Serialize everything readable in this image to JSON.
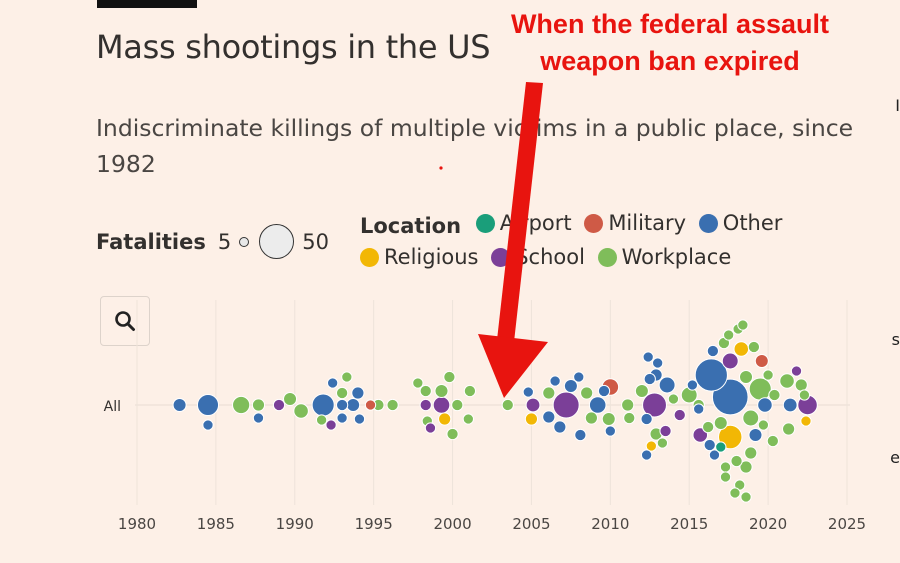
{
  "header": {
    "title": "Mass shootings in the US",
    "subtitle": "Indiscriminate killings of multiple victims in a public place, since 1982"
  },
  "annotation": {
    "text": "When the federal assault weapon ban expired",
    "color": "#e8140f"
  },
  "fatalities_legend": {
    "label": "Fatalities",
    "min": "5",
    "max": "50"
  },
  "location_legend": {
    "label": "Location",
    "items": [
      {
        "name": "Airport",
        "color": "#1a9e7a"
      },
      {
        "name": "Military",
        "color": "#cf5a46"
      },
      {
        "name": "Other",
        "color": "#3a6fb0"
      },
      {
        "name": "Religious",
        "color": "#f2b705"
      },
      {
        "name": "School",
        "color": "#7b3f98"
      },
      {
        "name": "Workplace",
        "color": "#7fbd5a"
      }
    ]
  },
  "search_icon": "search-icon",
  "chart_data": {
    "type": "scatter",
    "row_label": "All",
    "x_axis": {
      "ticks": [
        "1980",
        "1985",
        "1990",
        "1995",
        "2000",
        "2005",
        "2010",
        "2015",
        "2020",
        "2025"
      ],
      "range": [
        1980,
        2025
      ]
    },
    "y_axis": {
      "categories": [
        "All"
      ]
    },
    "size_variable": "Fatalities",
    "color_variable": "Location",
    "points": [
      {
        "year": 1982.7,
        "offset": 0,
        "fatalities": 8,
        "location": "Other"
      },
      {
        "year": 1984.5,
        "offset": 0,
        "fatalities": 21,
        "location": "Other"
      },
      {
        "year": 1984.5,
        "offset": 20,
        "fatalities": 5,
        "location": "Other"
      },
      {
        "year": 1986.6,
        "offset": 0,
        "fatalities": 14,
        "location": "Workplace"
      },
      {
        "year": 1987.7,
        "offset": 0,
        "fatalities": 7,
        "location": "Workplace"
      },
      {
        "year": 1987.7,
        "offset": 13,
        "fatalities": 5,
        "location": "Other"
      },
      {
        "year": 1989.0,
        "offset": 0,
        "fatalities": 6,
        "location": "School"
      },
      {
        "year": 1989.7,
        "offset": -6,
        "fatalities": 8,
        "location": "Workplace"
      },
      {
        "year": 1990.4,
        "offset": 6,
        "fatalities": 10,
        "location": "Workplace"
      },
      {
        "year": 1991.8,
        "offset": 0,
        "fatalities": 23,
        "location": "Other"
      },
      {
        "year": 1991.7,
        "offset": 15,
        "fatalities": 5,
        "location": "Workplace"
      },
      {
        "year": 1993.0,
        "offset": 0,
        "fatalities": 6,
        "location": "Other"
      },
      {
        "year": 1993.0,
        "offset": 13,
        "fatalities": 5,
        "location": "Other"
      },
      {
        "year": 1993.0,
        "offset": -12,
        "fatalities": 6,
        "location": "Workplace"
      },
      {
        "year": 1992.3,
        "offset": 20,
        "fatalities": 5,
        "location": "School"
      },
      {
        "year": 1992.4,
        "offset": -22,
        "fatalities": 5,
        "location": "Other"
      },
      {
        "year": 1993.3,
        "offset": -28,
        "fatalities": 5,
        "location": "Workplace"
      },
      {
        "year": 1993.7,
        "offset": 0,
        "fatalities": 8,
        "location": "Other"
      },
      {
        "year": 1994.0,
        "offset": -12,
        "fatalities": 7,
        "location": "Other"
      },
      {
        "year": 1994.1,
        "offset": 14,
        "fatalities": 5,
        "location": "Other"
      },
      {
        "year": 1994.8,
        "offset": 0,
        "fatalities": 5,
        "location": "Military"
      },
      {
        "year": 1995.3,
        "offset": 0,
        "fatalities": 6,
        "location": "Workplace"
      },
      {
        "year": 1996.2,
        "offset": 0,
        "fatalities": 6,
        "location": "Workplace"
      },
      {
        "year": 1997.8,
        "offset": -22,
        "fatalities": 5,
        "location": "Workplace"
      },
      {
        "year": 1998.3,
        "offset": 0,
        "fatalities": 6,
        "location": "School"
      },
      {
        "year": 1998.3,
        "offset": -14,
        "fatalities": 6,
        "location": "Workplace"
      },
      {
        "year": 1998.4,
        "offset": 16,
        "fatalities": 5,
        "location": "Workplace"
      },
      {
        "year": 1998.6,
        "offset": 23,
        "fatalities": 5,
        "location": "School"
      },
      {
        "year": 1999.3,
        "offset": -14,
        "fatalities": 8,
        "location": "Workplace"
      },
      {
        "year": 1999.3,
        "offset": 0,
        "fatalities": 13,
        "location": "School"
      },
      {
        "year": 1999.5,
        "offset": 14,
        "fatalities": 7,
        "location": "Religious"
      },
      {
        "year": 1999.8,
        "offset": -28,
        "fatalities": 6,
        "location": "Workplace"
      },
      {
        "year": 2000.0,
        "offset": 29,
        "fatalities": 6,
        "location": "Workplace"
      },
      {
        "year": 2000.3,
        "offset": 0,
        "fatalities": 6,
        "location": "Workplace"
      },
      {
        "year": 2001.0,
        "offset": 14,
        "fatalities": 5,
        "location": "Workplace"
      },
      {
        "year": 2001.1,
        "offset": -14,
        "fatalities": 6,
        "location": "Workplace"
      },
      {
        "year": 2003.5,
        "offset": 0,
        "fatalities": 6,
        "location": "Workplace"
      },
      {
        "year": 2004.8,
        "offset": -13,
        "fatalities": 5,
        "location": "Other"
      },
      {
        "year": 2005.1,
        "offset": 0,
        "fatalities": 9,
        "location": "School"
      },
      {
        "year": 2005.0,
        "offset": 14,
        "fatalities": 7,
        "location": "Religious"
      },
      {
        "year": 2006.1,
        "offset": 12,
        "fatalities": 7,
        "location": "Other"
      },
      {
        "year": 2006.1,
        "offset": -12,
        "fatalities": 7,
        "location": "Workplace"
      },
      {
        "year": 2006.5,
        "offset": -24,
        "fatalities": 5,
        "location": "Other"
      },
      {
        "year": 2006.8,
        "offset": 22,
        "fatalities": 7,
        "location": "Other"
      },
      {
        "year": 2007.2,
        "offset": 0,
        "fatalities": 32,
        "location": "School"
      },
      {
        "year": 2007.5,
        "offset": -19,
        "fatalities": 8,
        "location": "Other"
      },
      {
        "year": 2008.0,
        "offset": -28,
        "fatalities": 5,
        "location": "Other"
      },
      {
        "year": 2008.1,
        "offset": 30,
        "fatalities": 6,
        "location": "Other"
      },
      {
        "year": 2008.5,
        "offset": -12,
        "fatalities": 7,
        "location": "Workplace"
      },
      {
        "year": 2008.8,
        "offset": 13,
        "fatalities": 7,
        "location": "Workplace"
      },
      {
        "year": 2009.2,
        "offset": 0,
        "fatalities": 13,
        "location": "Other"
      },
      {
        "year": 2009.6,
        "offset": -14,
        "fatalities": 6,
        "location": "Other"
      },
      {
        "year": 2010.0,
        "offset": -18,
        "fatalities": 13,
        "location": "Military"
      },
      {
        "year": 2009.9,
        "offset": 14,
        "fatalities": 8,
        "location": "Workplace"
      },
      {
        "year": 2010.0,
        "offset": 26,
        "fatalities": 5,
        "location": "Other"
      },
      {
        "year": 2011.1,
        "offset": 0,
        "fatalities": 7,
        "location": "Workplace"
      },
      {
        "year": 2011.2,
        "offset": 13,
        "fatalities": 6,
        "location": "Workplace"
      },
      {
        "year": 2012.0,
        "offset": -14,
        "fatalities": 8,
        "location": "Workplace"
      },
      {
        "year": 2012.3,
        "offset": 14,
        "fatalities": 6,
        "location": "Other"
      },
      {
        "year": 2012.5,
        "offset": -26,
        "fatalities": 6,
        "location": "Other"
      },
      {
        "year": 2012.8,
        "offset": 0,
        "fatalities": 27,
        "location": "School"
      },
      {
        "year": 2012.9,
        "offset": -30,
        "fatalities": 7,
        "location": "Other"
      },
      {
        "year": 2012.9,
        "offset": 29,
        "fatalities": 7,
        "location": "Workplace"
      },
      {
        "year": 2012.6,
        "offset": 41,
        "fatalities": 5,
        "location": "Religious"
      },
      {
        "year": 2012.4,
        "offset": -48,
        "fatalities": 5,
        "location": "Other"
      },
      {
        "year": 2012.3,
        "offset": 50,
        "fatalities": 5,
        "location": "Other"
      },
      {
        "year": 2013.6,
        "offset": -20,
        "fatalities": 12,
        "location": "Other"
      },
      {
        "year": 2013.5,
        "offset": 26,
        "fatalities": 6,
        "location": "School"
      },
      {
        "year": 2013.3,
        "offset": 38,
        "fatalities": 5,
        "location": "Workplace"
      },
      {
        "year": 2013.0,
        "offset": -42,
        "fatalities": 5,
        "location": "Other"
      },
      {
        "year": 2014.0,
        "offset": -6,
        "fatalities": 5,
        "location": "Workplace"
      },
      {
        "year": 2014.4,
        "offset": 10,
        "fatalities": 6,
        "location": "School"
      },
      {
        "year": 2015.0,
        "offset": -10,
        "fatalities": 12,
        "location": "Workplace"
      },
      {
        "year": 2015.6,
        "offset": 4,
        "fatalities": 5,
        "location": "Other"
      },
      {
        "year": 2015.2,
        "offset": -20,
        "fatalities": 5,
        "location": "Other"
      },
      {
        "year": 2016.4,
        "offset": -30,
        "fatalities": 49,
        "location": "Other"
      },
      {
        "year": 2015.6,
        "offset": 0,
        "fatalities": 6,
        "location": "Workplace"
      },
      {
        "year": 2015.7,
        "offset": 30,
        "fatalities": 10,
        "location": "School"
      },
      {
        "year": 2016.2,
        "offset": 22,
        "fatalities": 6,
        "location": "Workplace"
      },
      {
        "year": 2016.3,
        "offset": 40,
        "fatalities": 6,
        "location": "Other"
      },
      {
        "year": 2016.5,
        "offset": -54,
        "fatalities": 6,
        "location": "Other"
      },
      {
        "year": 2016.6,
        "offset": 50,
        "fatalities": 5,
        "location": "Other"
      },
      {
        "year": 2017.0,
        "offset": 18,
        "fatalities": 8,
        "location": "Workplace"
      },
      {
        "year": 2017.3,
        "offset": 62,
        "fatalities": 5,
        "location": "Workplace"
      },
      {
        "year": 2017.6,
        "offset": -8,
        "fatalities": 60,
        "location": "Other"
      },
      {
        "year": 2017.6,
        "offset": 32,
        "fatalities": 26,
        "location": "Religious"
      },
      {
        "year": 2017.6,
        "offset": -44,
        "fatalities": 12,
        "location": "School"
      },
      {
        "year": 2017.0,
        "offset": 42,
        "fatalities": 5,
        "location": "Airport"
      },
      {
        "year": 2017.2,
        "offset": -62,
        "fatalities": 6,
        "location": "Workplace"
      },
      {
        "year": 2017.5,
        "offset": -70,
        "fatalities": 5,
        "location": "Workplace"
      },
      {
        "year": 2017.3,
        "offset": 72,
        "fatalities": 5,
        "location": "Workplace"
      },
      {
        "year": 2018.0,
        "offset": 56,
        "fatalities": 6,
        "location": "Workplace"
      },
      {
        "year": 2018.1,
        "offset": -76,
        "fatalities": 5,
        "location": "Workplace"
      },
      {
        "year": 2018.2,
        "offset": 80,
        "fatalities": 5,
        "location": "Workplace"
      },
      {
        "year": 2017.9,
        "offset": 88,
        "fatalities": 5,
        "location": "Workplace"
      },
      {
        "year": 2018.3,
        "offset": -56,
        "fatalities": 10,
        "location": "Religious"
      },
      {
        "year": 2018.4,
        "offset": -80,
        "fatalities": 5,
        "location": "Workplace"
      },
      {
        "year": 2018.6,
        "offset": 92,
        "fatalities": 5,
        "location": "Workplace"
      },
      {
        "year": 2018.6,
        "offset": 62,
        "fatalities": 7,
        "location": "Workplace"
      },
      {
        "year": 2018.6,
        "offset": -28,
        "fatalities": 8,
        "location": "Workplace"
      },
      {
        "year": 2018.9,
        "offset": 48,
        "fatalities": 7,
        "location": "Workplace"
      },
      {
        "year": 2018.9,
        "offset": 13,
        "fatalities": 12,
        "location": "Workplace"
      },
      {
        "year": 2019.1,
        "offset": -58,
        "fatalities": 6,
        "location": "Workplace"
      },
      {
        "year": 2019.2,
        "offset": 30,
        "fatalities": 8,
        "location": "Other"
      },
      {
        "year": 2019.5,
        "offset": -16,
        "fatalities": 23,
        "location": "Workplace"
      },
      {
        "year": 2019.6,
        "offset": -44,
        "fatalities": 8,
        "location": "Military"
      },
      {
        "year": 2019.7,
        "offset": 20,
        "fatalities": 5,
        "location": "Workplace"
      },
      {
        "year": 2019.8,
        "offset": 0,
        "fatalities": 10,
        "location": "Other"
      },
      {
        "year": 2020.0,
        "offset": -30,
        "fatalities": 5,
        "location": "Workplace"
      },
      {
        "year": 2020.3,
        "offset": 36,
        "fatalities": 6,
        "location": "Workplace"
      },
      {
        "year": 2020.4,
        "offset": -10,
        "fatalities": 6,
        "location": "Workplace"
      },
      {
        "year": 2021.2,
        "offset": -24,
        "fatalities": 10,
        "location": "Workplace"
      },
      {
        "year": 2021.4,
        "offset": 0,
        "fatalities": 9,
        "location": "Other"
      },
      {
        "year": 2021.3,
        "offset": 24,
        "fatalities": 7,
        "location": "Workplace"
      },
      {
        "year": 2021.8,
        "offset": -34,
        "fatalities": 5,
        "location": "School"
      },
      {
        "year": 2022.1,
        "offset": -20,
        "fatalities": 7,
        "location": "Workplace"
      },
      {
        "year": 2022.5,
        "offset": 0,
        "fatalities": 18,
        "location": "School"
      },
      {
        "year": 2022.4,
        "offset": 16,
        "fatalities": 5,
        "location": "Religious"
      },
      {
        "year": 2022.3,
        "offset": -10,
        "fatalities": 5,
        "location": "Workplace"
      }
    ]
  },
  "right_edge": {
    "a": "I",
    "b": "s",
    "c": "e"
  }
}
